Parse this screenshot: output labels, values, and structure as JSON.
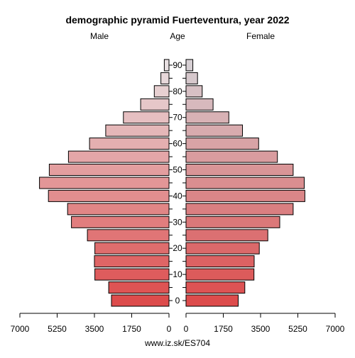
{
  "chart_data": {
    "type": "bar",
    "title": "demographic pyramid Fuerteventura, year 2022",
    "left_label": "Male",
    "center_label": "Age",
    "right_label": "Female",
    "age_groups": [
      "0-4",
      "5-9",
      "10-14",
      "15-19",
      "20-24",
      "25-29",
      "30-34",
      "35-39",
      "40-44",
      "45-49",
      "50-54",
      "55-59",
      "60-64",
      "65-69",
      "70-74",
      "75-79",
      "80-84",
      "85-89",
      "90+"
    ],
    "age_tick_labels": [
      "0",
      "10",
      "20",
      "30",
      "40",
      "50",
      "60",
      "70",
      "80",
      "90"
    ],
    "series": [
      {
        "name": "Male",
        "values": [
          2700,
          2830,
          3480,
          3500,
          3480,
          3830,
          4580,
          4760,
          5660,
          6080,
          5620,
          4720,
          3730,
          2970,
          2140,
          1330,
          690,
          380,
          220
        ]
      },
      {
        "name": "Female",
        "values": [
          2450,
          2760,
          3190,
          3200,
          3440,
          3840,
          4400,
          5030,
          5580,
          5550,
          5030,
          4290,
          3410,
          2650,
          2010,
          1270,
          760,
          540,
          320
        ]
      }
    ],
    "xlim": [
      0,
      7000
    ],
    "x_tick_labels_left": [
      "7000",
      "5250",
      "3500",
      "1750",
      "0"
    ],
    "x_tick_labels_right": [
      "0",
      "1750",
      "3500",
      "5250",
      "7000"
    ]
  },
  "footer": "www.iz.sk/ES704"
}
